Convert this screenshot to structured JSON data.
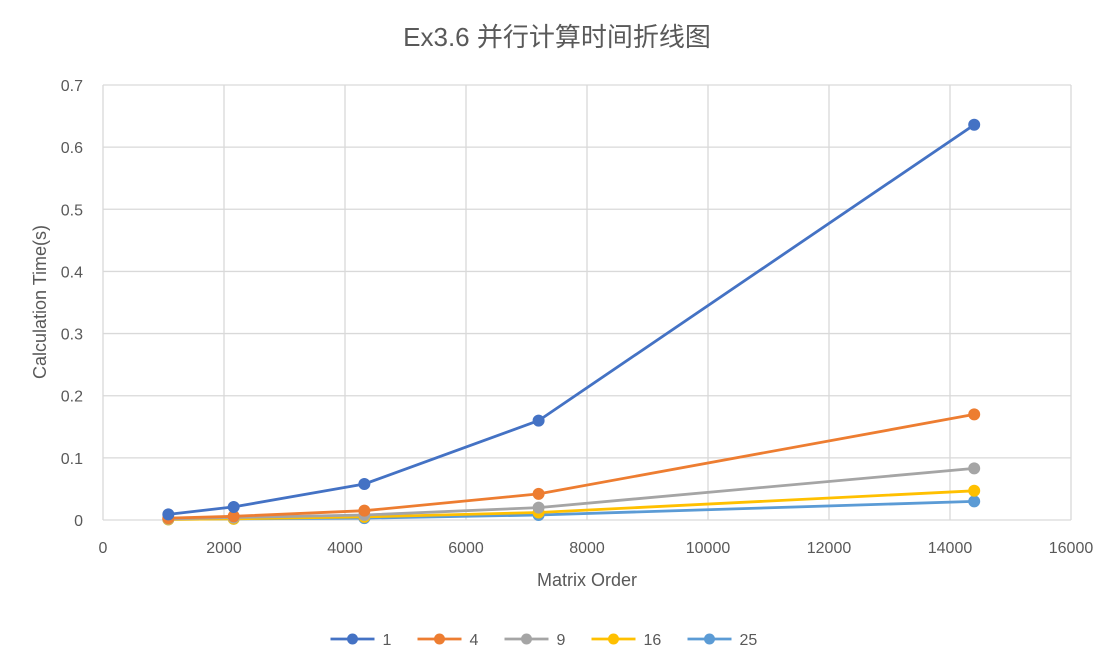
{
  "chart_data": {
    "type": "line",
    "title": "Ex3.6 并行计算时间折线图",
    "xlabel": "Matrix Order",
    "ylabel": "Calculation Time(s)",
    "xlim": [
      0,
      16000
    ],
    "ylim": [
      0,
      0.7
    ],
    "x_ticks": [
      0,
      2000,
      4000,
      6000,
      8000,
      10000,
      12000,
      14000,
      16000
    ],
    "y_ticks": [
      0,
      0.1,
      0.2,
      0.3,
      0.4,
      0.5,
      0.6,
      0.7
    ],
    "x_tick_labels": [
      "0",
      "2000",
      "4000",
      "6000",
      "8000",
      "10000",
      "12000",
      "14000",
      "16000"
    ],
    "y_tick_labels": [
      "0",
      "0.1",
      "0.2",
      "0.3",
      "0.4",
      "0.5",
      "0.6",
      "0.7"
    ],
    "grid": true,
    "legend_position": "bottom",
    "x": [
      1080,
      2160,
      4320,
      7200,
      14400
    ],
    "series": [
      {
        "name": "1",
        "color": "#4472C4",
        "values": [
          0.009,
          0.021,
          0.058,
          0.16,
          0.636
        ]
      },
      {
        "name": "4",
        "color": "#ED7D31",
        "values": [
          0.003,
          0.006,
          0.015,
          0.042,
          0.17
        ]
      },
      {
        "name": "9",
        "color": "#A5A5A5",
        "values": [
          0.002,
          0.004,
          0.008,
          0.02,
          0.083
        ]
      },
      {
        "name": "16",
        "color": "#FFC000",
        "values": [
          0.001,
          0.002,
          0.005,
          0.012,
          0.047
        ]
      },
      {
        "name": "25",
        "color": "#5B9BD5",
        "values": [
          0.001,
          0.002,
          0.003,
          0.008,
          0.03
        ]
      }
    ]
  }
}
